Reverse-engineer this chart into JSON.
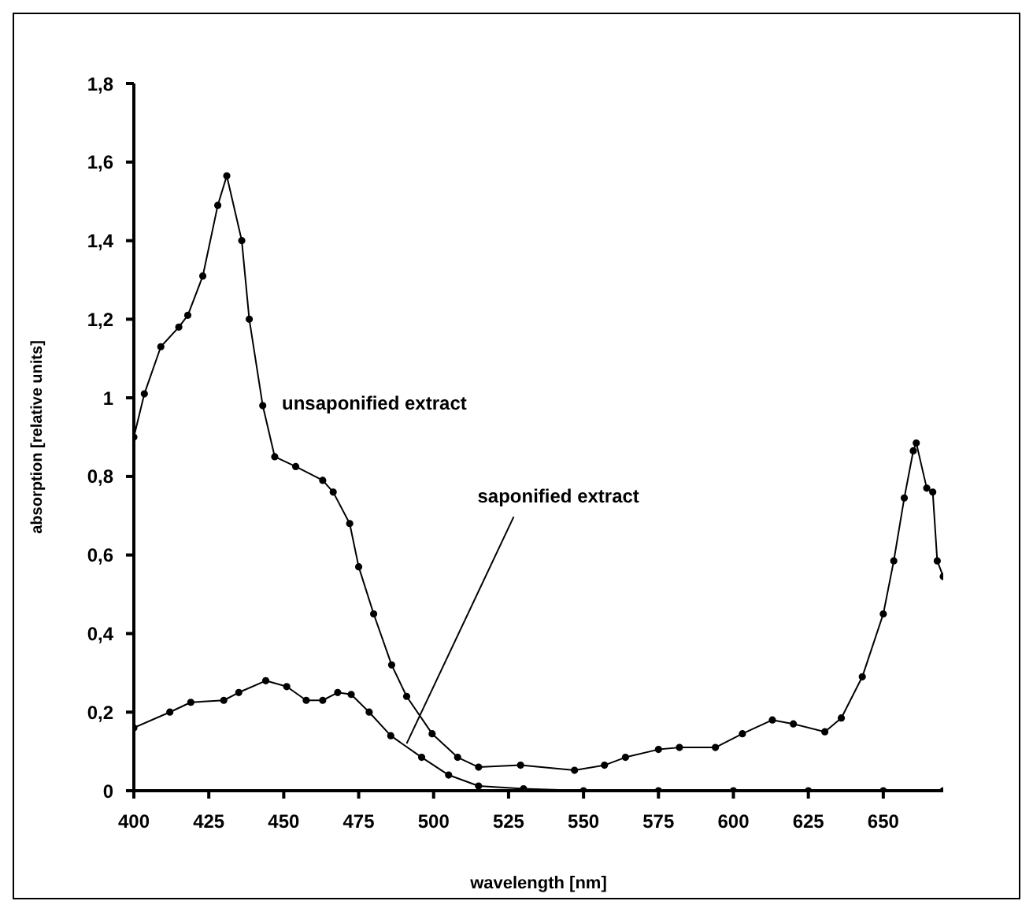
{
  "chart_data": {
    "type": "line",
    "xlabel": "wavelength [nm]",
    "ylabel": "absorption [relative units]",
    "xlim": [
      400,
      670
    ],
    "xticks": [
      400,
      425,
      450,
      475,
      500,
      525,
      550,
      575,
      600,
      625,
      650
    ],
    "ylim": [
      0,
      1.8
    ],
    "yticks": [
      0,
      {
        "value": 0.2,
        "label": "0,2"
      },
      {
        "value": 0.4,
        "label": "0,4"
      },
      {
        "value": 0.6,
        "label": "0,6"
      },
      {
        "value": 0.8,
        "label": "0,8"
      },
      1,
      {
        "value": 1.2,
        "label": "1,2"
      },
      {
        "value": 1.4,
        "label": "1,4"
      },
      {
        "value": 1.6,
        "label": "1,6"
      },
      {
        "value": 1.8,
        "label": "1,8"
      }
    ],
    "grid": false,
    "legend": false,
    "marker": "circle",
    "line_style": "solid",
    "series": [
      {
        "color": "#000000",
        "x": [
          400,
          403.5,
          409,
          415,
          418,
          423,
          428,
          431,
          436,
          438.5,
          443,
          447,
          454,
          463,
          466.5,
          472,
          475,
          480,
          486,
          491,
          499.5,
          508,
          515,
          529,
          547,
          557,
          564,
          575,
          582,
          594,
          603,
          613,
          620,
          630.5,
          636,
          643,
          650,
          653.5,
          657,
          660,
          661,
          664.5,
          666.5,
          668,
          670
        ],
        "values": [
          0.9,
          1.01,
          1.13,
          1.18,
          1.21,
          1.31,
          1.49,
          1.565,
          1.4,
          1.2,
          0.98,
          0.85,
          0.825,
          0.79,
          0.76,
          0.68,
          0.57,
          0.45,
          0.32,
          0.24,
          0.145,
          0.085,
          0.06,
          0.065,
          0.052,
          0.065,
          0.085,
          0.105,
          0.11,
          0.11,
          0.145,
          0.18,
          0.17,
          0.15,
          0.185,
          0.29,
          0.45,
          0.585,
          0.745,
          0.865,
          0.885,
          0.77,
          0.76,
          0.585,
          0.545
        ]
      },
      {
        "color": "#000000",
        "x": [
          400,
          412,
          419,
          430,
          435,
          444,
          451,
          457.5,
          463,
          468,
          472.5,
          478.5,
          485.7,
          496,
          505,
          515,
          530,
          550,
          575,
          600,
          625,
          650,
          670
        ],
        "values": [
          0.16,
          0.2,
          0.225,
          0.23,
          0.25,
          0.28,
          0.265,
          0.23,
          0.23,
          0.25,
          0.245,
          0.2,
          0.14,
          0.085,
          0.04,
          0.012,
          0.005,
          0,
          0,
          0,
          0,
          0,
          0
        ]
      }
    ],
    "annotations": [
      "unsaponified extract",
      {
        "text": "saponified extract",
        "x": 491,
        "y": 0.12
      }
    ]
  }
}
